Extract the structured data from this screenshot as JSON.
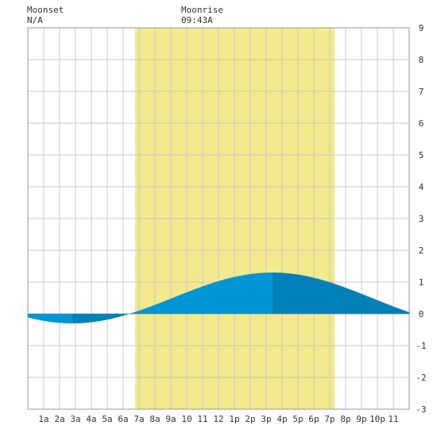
{
  "moonset": {
    "label": "Moonset",
    "value": "N/A"
  },
  "moonrise": {
    "label": "Moonrise",
    "value": "09:43A"
  },
  "colors": {
    "daylight": "#f2ea8c",
    "tide_light": "#0096d6",
    "tide_dark": "#0080b8",
    "grid": "#c8c8c8",
    "zero_line": "#666666",
    "border": "#999999",
    "text": "#333333"
  },
  "chart_data": {
    "type": "area",
    "x_tick_labels": [
      "1a",
      "2a",
      "3a",
      "4a",
      "5a",
      "6a",
      "7a",
      "8a",
      "9a",
      "10",
      "11",
      "12",
      "1p",
      "2p",
      "3p",
      "4p",
      "5p",
      "6p",
      "7p",
      "8p",
      "9p",
      "10p",
      "11"
    ],
    "y_tick_labels": [
      "9",
      "8",
      "7",
      "6",
      "5",
      "4",
      "3",
      "2",
      "1",
      "0",
      "-1",
      "-2",
      "-3"
    ],
    "xlim": [
      0,
      24
    ],
    "ylim": [
      -3,
      9
    ],
    "daylight_hours": [
      6.75,
      19.3
    ],
    "tide_extremes": [
      {
        "hour": 2.8,
        "height": -0.3
      },
      {
        "hour": 15.4,
        "height": 1.3
      },
      {
        "hour": 27.9,
        "height": -0.3
      }
    ],
    "shading_breaks_hours": [
      2.8,
      6.5,
      15.4,
      24
    ]
  }
}
